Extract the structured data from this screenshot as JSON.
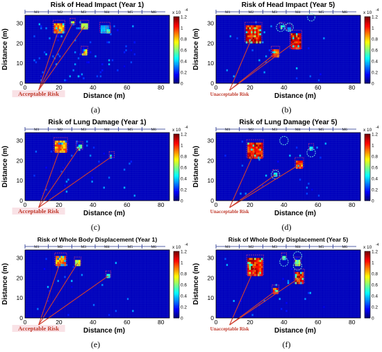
{
  "colors": {
    "background_cell": "#1020a8",
    "grid_line": "#2a3ec8",
    "box_outline": "#b0308a",
    "arrow": "#d04030",
    "label_acceptable_bg": "#f6d6dc",
    "label_acceptable_text": "#c0392b",
    "label_unacceptable_text": "#c0392b"
  },
  "chart_data": [
    {
      "id": "a",
      "type": "heatmap",
      "title": "Risk of Head Impact (Year 1)",
      "xlabel": "Distance (m)",
      "ylabel": "Distance (m)",
      "xlim": [
        0,
        85
      ],
      "ylim": [
        0,
        34
      ],
      "xticks": [
        "0",
        "20",
        "40",
        "60",
        "80"
      ],
      "yticks": [
        "0",
        "10",
        "20",
        "30"
      ],
      "zones": [
        "M1",
        "M2",
        "M3",
        "M4",
        "M5",
        "M6"
      ],
      "colorbar": {
        "ticks": [
          "0",
          "0.2",
          "0.4",
          "0.6",
          "0.8",
          "1",
          "1.2"
        ],
        "exponent_base": "x 10",
        "exponent": "-4"
      },
      "risk_label": "Acceptable Risk",
      "sublabel": "(a)",
      "hotspots": [
        {
          "x": 20,
          "y": 30,
          "w": 6,
          "h": 5,
          "v": 1.0
        },
        {
          "x": 28,
          "y": 31,
          "w": 2,
          "h": 2,
          "v": 0.8
        },
        {
          "x": 35,
          "y": 30,
          "w": 4,
          "h": 3,
          "v": 0.7
        },
        {
          "x": 47,
          "y": 29,
          "w": 5,
          "h": 4,
          "v": 0.4
        },
        {
          "x": 35,
          "y": 17,
          "w": 3,
          "h": 3,
          "v": 0.9
        },
        {
          "x": 49,
          "y": 27,
          "w": 2,
          "h": 2,
          "v": 0.6
        }
      ],
      "scatter": 0.35,
      "circles": []
    },
    {
      "id": "b",
      "type": "heatmap",
      "title": "Risk of Head Impact (Year 5)",
      "xlabel": "Distance (m)",
      "ylabel": "Distance (m)",
      "xlim": [
        0,
        85
      ],
      "ylim": [
        0,
        34
      ],
      "xticks": [
        "0",
        "20",
        "40",
        "60",
        "80"
      ],
      "yticks": [
        "0",
        "10",
        "20",
        "30"
      ],
      "zones": [
        "M1",
        "M2",
        "M3",
        "M4",
        "M5",
        "M6"
      ],
      "colorbar": {
        "ticks": [
          "0",
          "0.2",
          "0.4",
          "0.6",
          "0.8",
          "1",
          "1.2"
        ],
        "exponent_base": "x 10",
        "exponent": "-4"
      },
      "risk_label": "Unacceptable Risk",
      "sublabel": "(b)",
      "hotspots": [
        {
          "x": 22,
          "y": 29,
          "w": 9,
          "h": 9,
          "v": 1.2
        },
        {
          "x": 47,
          "y": 25,
          "w": 6,
          "h": 8,
          "v": 1.2
        },
        {
          "x": 35,
          "y": 17,
          "w": 4,
          "h": 4,
          "v": 1.1
        },
        {
          "x": 39,
          "y": 29,
          "w": 2,
          "h": 2,
          "v": 0.6
        },
        {
          "x": 43,
          "y": 28,
          "w": 2,
          "h": 2,
          "v": 0.4
        }
      ],
      "scatter": 0.1,
      "circles": [
        {
          "x": 38,
          "y": 28,
          "r": 2.5
        },
        {
          "x": 43,
          "y": 28,
          "r": 2.5
        },
        {
          "x": 56,
          "y": 33,
          "r": 2.2
        }
      ]
    },
    {
      "id": "c",
      "type": "heatmap",
      "title": "Risk of Lung Damage (Year 1)",
      "xlabel": "Distance (m)",
      "ylabel": "Distance (m)",
      "xlim": [
        0,
        85
      ],
      "ylim": [
        0,
        34
      ],
      "xticks": [
        "0",
        "20",
        "40",
        "60",
        "80"
      ],
      "yticks": [
        "0",
        "10",
        "20",
        "30"
      ],
      "zones": [
        "M1",
        "M2",
        "M3",
        "M4",
        "M5",
        "M6"
      ],
      "colorbar": {
        "ticks": [
          "0",
          "0.2",
          "0.4",
          "0.6",
          "0.8",
          "1",
          "1.2"
        ],
        "exponent_base": "x 10",
        "exponent": "-4"
      },
      "risk_label": "Acceptable Risk",
      "sublabel": "(c)",
      "hotspots": [
        {
          "x": 21,
          "y": 30,
          "w": 7,
          "h": 6,
          "v": 1.0
        },
        {
          "x": 32,
          "y": 28,
          "w": 3,
          "h": 3,
          "v": 0.6
        },
        {
          "x": 51,
          "y": 23,
          "w": 2,
          "h": 2,
          "v": 0.5
        }
      ],
      "scatter": 0.15,
      "circles": []
    },
    {
      "id": "d",
      "type": "heatmap",
      "title": "Risk of Lung Damage (Year 5)",
      "xlabel": "Distance (m)",
      "ylabel": "Distance (m)",
      "xlim": [
        0,
        85
      ],
      "ylim": [
        0,
        34
      ],
      "xticks": [
        "0",
        "20",
        "40",
        "60",
        "80"
      ],
      "yticks": [
        "0",
        "10",
        "20",
        "30"
      ],
      "zones": [
        "M1",
        "M2",
        "M3",
        "M4",
        "M5",
        "M6"
      ],
      "colorbar": {
        "ticks": [
          "0",
          "0.2",
          "0.4",
          "0.6",
          "0.8",
          "1",
          "1.2"
        ],
        "exponent_base": "x 10",
        "exponent": "-4"
      },
      "risk_label": "Unacceptable Risk",
      "sublabel": "(d)",
      "hotspots": [
        {
          "x": 23,
          "y": 29,
          "w": 9,
          "h": 8,
          "v": 1.2
        },
        {
          "x": 49,
          "y": 20,
          "w": 4,
          "h": 4,
          "v": 1.1
        },
        {
          "x": 35,
          "y": 14,
          "w": 2,
          "h": 2,
          "v": 0.6
        },
        {
          "x": 56,
          "y": 27,
          "w": 2,
          "h": 2,
          "v": 0.5
        }
      ],
      "scatter": 0.1,
      "circles": [
        {
          "x": 35,
          "y": 13,
          "r": 2.5
        },
        {
          "x": 40,
          "y": 30,
          "r": 2.5
        },
        {
          "x": 56,
          "y": 24,
          "r": 2.5
        }
      ]
    },
    {
      "id": "e",
      "type": "heatmap",
      "title": "Risk of Whole Body Displacement (Year 1)",
      "xlabel": "Distance (m)",
      "ylabel": "Distance (m)",
      "xlim": [
        0,
        85
      ],
      "ylim": [
        0,
        34
      ],
      "xticks": [
        "0",
        "20",
        "40",
        "60",
        "80"
      ],
      "yticks": [
        "0",
        "10",
        "20",
        "30"
      ],
      "zones": [
        "M1",
        "M2",
        "M3",
        "M4",
        "M5",
        "M6"
      ],
      "colorbar": {
        "ticks": [
          "0",
          "0.2",
          "0.4",
          "0.6",
          "0.8",
          "1",
          "1.2"
        ],
        "exponent_base": "x 10",
        "exponent": "-4"
      },
      "risk_label": "Acceptable Risk",
      "sublabel": "(e)",
      "hotspots": [
        {
          "x": 21,
          "y": 31,
          "w": 6,
          "h": 5,
          "v": 1.0
        },
        {
          "x": 31,
          "y": 29,
          "w": 3,
          "h": 3,
          "v": 0.8
        },
        {
          "x": 49,
          "y": 22,
          "w": 2,
          "h": 2,
          "v": 0.6
        }
      ],
      "scatter": 0.1,
      "circles": []
    },
    {
      "id": "f",
      "type": "heatmap",
      "title": "Risk of Whole Body Displacement (Year 5)",
      "xlabel": "Distance (m)",
      "ylabel": "Distance (m)",
      "xlim": [
        0,
        85
      ],
      "ylim": [
        0,
        34
      ],
      "xticks": [
        "0",
        "20",
        "40",
        "60",
        "80"
      ],
      "yticks": [
        "0",
        "10",
        "20",
        "30"
      ],
      "zones": [
        "M1",
        "M2",
        "M3",
        "M4",
        "M5",
        "M6"
      ],
      "colorbar": {
        "ticks": [
          "0",
          "0.2",
          "0.4",
          "0.6",
          "0.8",
          "1",
          "1.2"
        ],
        "exponent_base": "x 10",
        "exponent": "-4"
      },
      "risk_label": "Unacceptable Risk",
      "sublabel": "(f)",
      "hotspots": [
        {
          "x": 23,
          "y": 30,
          "w": 9,
          "h": 9,
          "v": 1.2
        },
        {
          "x": 49,
          "y": 23,
          "w": 5,
          "h": 6,
          "v": 1.2
        },
        {
          "x": 35,
          "y": 15,
          "w": 3,
          "h": 3,
          "v": 1.1
        },
        {
          "x": 48,
          "y": 29,
          "w": 3,
          "h": 3,
          "v": 0.7
        },
        {
          "x": 40,
          "y": 31,
          "w": 2,
          "h": 2,
          "v": 0.6
        }
      ],
      "scatter": 0.1,
      "circles": [
        {
          "x": 40,
          "y": 28,
          "r": 2.5
        },
        {
          "x": 48,
          "y": 31,
          "r": 2.5
        },
        {
          "x": 48,
          "y": 26,
          "r": 2.5
        }
      ]
    }
  ]
}
